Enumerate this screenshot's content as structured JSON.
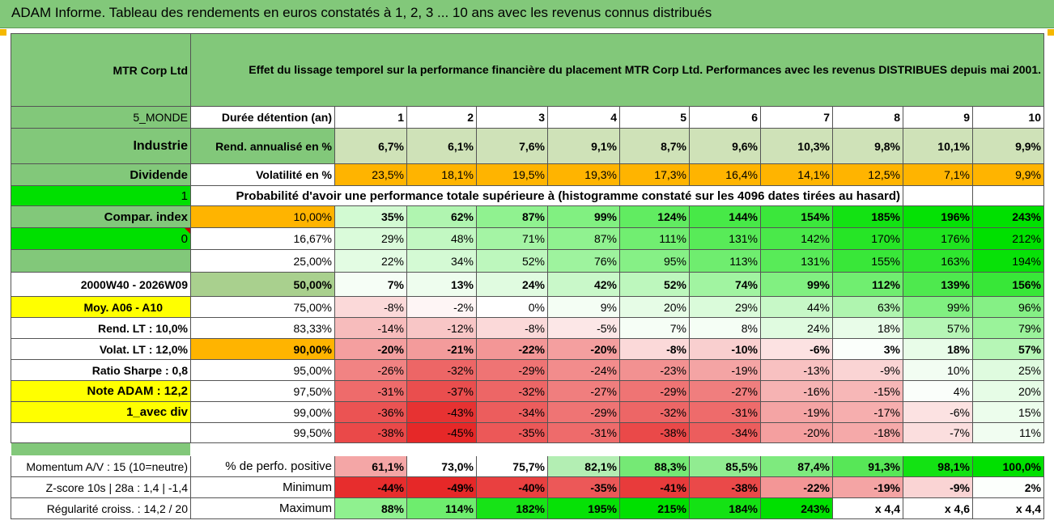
{
  "title": "ADAM Informe. Tableau des rendements en euros constatés à 1, 2, 3 ... 10 ans avec les revenus connus distribués",
  "header": {
    "company": "MTR Corp Ltd",
    "description": "Effet du lissage temporel sur la performance financière du placement MTR Corp Ltd. Performances avec les revenus DISTRIBUES depuis mai 2001."
  },
  "side": {
    "region": "5_MONDE",
    "sector": "Industrie",
    "dividend_label": "Dividende",
    "input1": "1",
    "compar_index": "Compar. index",
    "input0": "0",
    "period": "2000W40 - 2026W09",
    "moy": "Moy. A06 - A10",
    "rend_lt": "Rend. LT :    10,0%",
    "volat_lt": "Volat. LT :    12,0%",
    "sharpe": "Ratio Sharpe :    0,8",
    "note": "Note ADAM : 12,2",
    "avec_div": "1_avec div",
    "momentum": "Momentum A/V : 15 (10=neutre)",
    "zscore": "Z-score 10s  |  28a : 1,4  |  -1,4",
    "regularite": "Régularité croiss. : 14,2 / 20"
  },
  "labels": {
    "duree": "Durée détention (an)",
    "rend": "Rend. annualisé en %",
    "volat": "Volatilité en %",
    "proba": "Probabilité d'avoir une performance totale supérieure à (histogramme constaté sur les 4096 dates tirées au hasard)",
    "pct_pos": "% de perfo. positive",
    "minimum": "Minimum",
    "maximum": "Maximum"
  },
  "years": [
    "1",
    "2",
    "3",
    "4",
    "5",
    "6",
    "7",
    "8",
    "9",
    "10"
  ],
  "rend": [
    "6,7%",
    "6,1%",
    "7,6%",
    "9,1%",
    "8,7%",
    "9,6%",
    "10,3%",
    "9,8%",
    "10,1%",
    "9,9%"
  ],
  "volat": [
    "23,5%",
    "18,1%",
    "19,5%",
    "19,3%",
    "17,3%",
    "16,4%",
    "14,1%",
    "12,5%",
    "7,1%",
    "9,9%"
  ],
  "proba_rows": [
    {
      "pct": "10,00%",
      "values": [
        "35%",
        "62%",
        "87%",
        "99%",
        "124%",
        "144%",
        "154%",
        "185%",
        "196%",
        "243%"
      ]
    },
    {
      "pct": "16,67%",
      "values": [
        "29%",
        "48%",
        "71%",
        "87%",
        "111%",
        "131%",
        "142%",
        "170%",
        "176%",
        "212%"
      ]
    },
    {
      "pct": "25,00%",
      "values": [
        "22%",
        "34%",
        "52%",
        "76%",
        "95%",
        "113%",
        "131%",
        "155%",
        "163%",
        "194%"
      ]
    },
    {
      "pct": "50,00%",
      "values": [
        "7%",
        "13%",
        "24%",
        "42%",
        "52%",
        "74%",
        "99%",
        "112%",
        "139%",
        "156%"
      ]
    },
    {
      "pct": "75,00%",
      "values": [
        "-8%",
        "-2%",
        "0%",
        "9%",
        "20%",
        "29%",
        "44%",
        "63%",
        "99%",
        "96%"
      ]
    },
    {
      "pct": "83,33%",
      "values": [
        "-14%",
        "-12%",
        "-8%",
        "-5%",
        "7%",
        "8%",
        "24%",
        "18%",
        "57%",
        "79%"
      ]
    },
    {
      "pct": "90,00%",
      "values": [
        "-20%",
        "-21%",
        "-22%",
        "-20%",
        "-8%",
        "-10%",
        "-6%",
        "3%",
        "18%",
        "57%"
      ]
    },
    {
      "pct": "95,00%",
      "values": [
        "-26%",
        "-32%",
        "-29%",
        "-24%",
        "-23%",
        "-19%",
        "-13%",
        "-9%",
        "10%",
        "25%"
      ]
    },
    {
      "pct": "97,50%",
      "values": [
        "-31%",
        "-37%",
        "-32%",
        "-27%",
        "-29%",
        "-27%",
        "-16%",
        "-15%",
        "4%",
        "20%"
      ]
    },
    {
      "pct": "99,00%",
      "values": [
        "-36%",
        "-43%",
        "-34%",
        "-29%",
        "-32%",
        "-31%",
        "-19%",
        "-17%",
        "-6%",
        "15%"
      ]
    },
    {
      "pct": "99,50%",
      "values": [
        "-38%",
        "-45%",
        "-35%",
        "-31%",
        "-38%",
        "-34%",
        "-20%",
        "-18%",
        "-7%",
        "11%"
      ]
    }
  ],
  "pct_pos": [
    "61,1%",
    "73,0%",
    "75,7%",
    "82,1%",
    "88,3%",
    "85,5%",
    "87,4%",
    "91,3%",
    "98,1%",
    "100,0%"
  ],
  "minimum": [
    "-44%",
    "-49%",
    "-40%",
    "-35%",
    "-41%",
    "-38%",
    "-22%",
    "-19%",
    "-9%",
    "2%"
  ],
  "maximum": [
    "88%",
    "114%",
    "182%",
    "195%",
    "215%",
    "184%",
    "243%",
    "x 4,4",
    "x 4,6",
    "x 4,4"
  ],
  "colors": {
    "header_green": "#82c87a",
    "bright_green": "#00e000",
    "orange": "#ffb400",
    "yellow": "#ffff00",
    "rend_green": "#cfe2b8",
    "red_text": "#c00000"
  }
}
